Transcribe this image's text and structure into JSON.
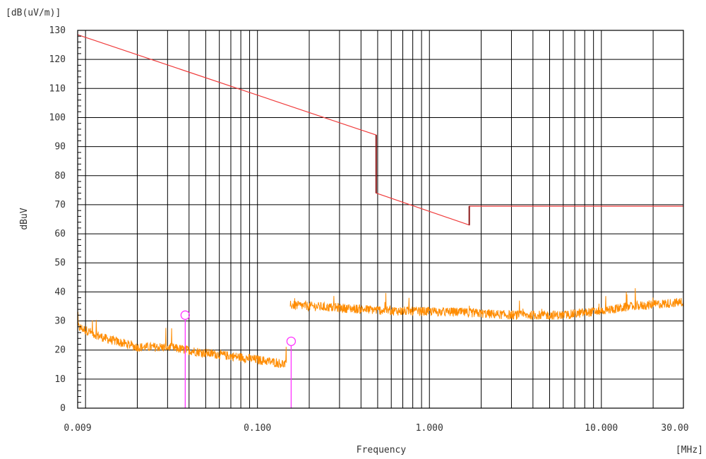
{
  "chart_data": {
    "type": "line",
    "x_scale": "log",
    "y_unit_label": "[dB(uV/m)]",
    "ylabel": "dBuV",
    "xlabel": "Frequency",
    "x_unit_label": "[MHz]",
    "xlim": [
      0.009,
      30
    ],
    "ylim": [
      0,
      130
    ],
    "y_ticks": [
      0,
      10,
      20,
      30,
      40,
      50,
      60,
      70,
      80,
      90,
      100,
      110,
      120,
      130
    ],
    "x_tick_labels": [
      {
        "value": 0.009,
        "label": "0.009"
      },
      {
        "value": 0.1,
        "label": "0.100"
      },
      {
        "value": 1,
        "label": "1.000"
      },
      {
        "value": 10,
        "label": "10.000"
      },
      {
        "value": 30,
        "label": "30.00"
      }
    ],
    "grid": true,
    "colors": {
      "limit": "#f03c3c",
      "limit_step": "#8b1a1a",
      "trace": "#ff8c00",
      "marker": "#ff33ff",
      "grid": "#000000"
    },
    "series": [
      {
        "kind": "limit",
        "points": [
          [
            0.009,
            128.5
          ],
          [
            0.49,
            94
          ],
          [
            0.49,
            74
          ],
          [
            1.705,
            63
          ],
          [
            1.705,
            69.5
          ],
          [
            30,
            69.5
          ]
        ]
      },
      {
        "kind": "measurement",
        "segments": [
          {
            "x_start": 0.009,
            "x_end": 0.148,
            "anchors": [
              [
                0.009,
                28
              ],
              [
                0.013,
                24
              ],
              [
                0.02,
                21
              ],
              [
                0.03,
                21
              ],
              [
                0.05,
                19
              ],
              [
                0.08,
                17.5
              ],
              [
                0.12,
                16
              ],
              [
                0.148,
                15
              ]
            ]
          },
          {
            "x_start": 0.155,
            "x_end": 30,
            "anchors": [
              [
                0.155,
                35.5
              ],
              [
                0.3,
                34.5
              ],
              [
                0.6,
                33.5
              ],
              [
                1.5,
                33
              ],
              [
                3,
                32
              ],
              [
                6,
                32
              ],
              [
                10,
                33.5
              ],
              [
                15,
                35
              ],
              [
                30,
                36.5
              ]
            ]
          }
        ]
      }
    ],
    "markers": [
      {
        "x": 0.038,
        "y": 32
      },
      {
        "x": 0.157,
        "y": 23
      }
    ]
  }
}
